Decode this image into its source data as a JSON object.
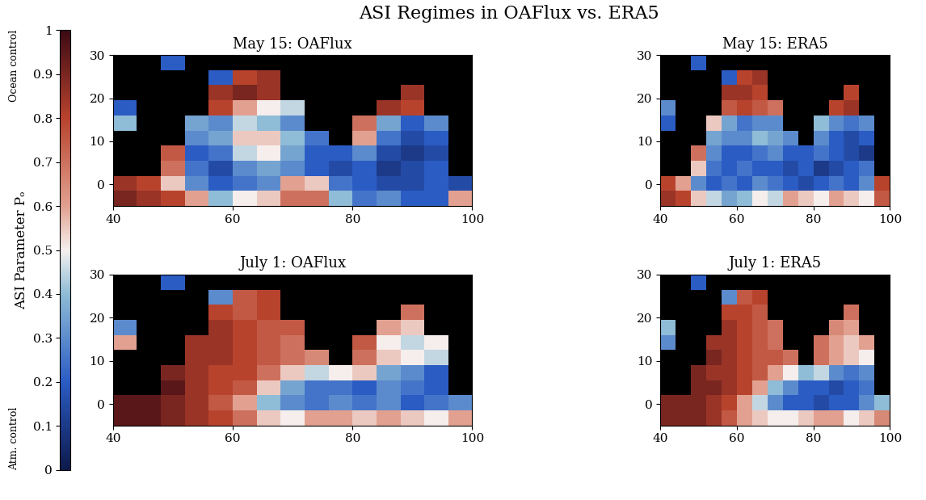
{
  "title": "ASI Regimes in OAFlux vs. ERA5",
  "colorbar": {
    "label": "ASI Parameter Pₒ",
    "range": [
      0,
      1
    ],
    "ticks": [
      0,
      0.1,
      0.2,
      0.3,
      0.4,
      0.5,
      0.6,
      0.7,
      0.8,
      0.9,
      1
    ],
    "top_label": "Ocean control",
    "bottom_label": "Atm. control"
  },
  "chart_data": [
    {
      "type": "heatmap",
      "title": "May 15: OAFlux",
      "x_edges": [
        40,
        44,
        48,
        52,
        56,
        60,
        64,
        68,
        72,
        76,
        80,
        84,
        88,
        92,
        96,
        100
      ],
      "y_edges": [
        -5,
        -1.5,
        2,
        5.5,
        9,
        12.5,
        16,
        19.5,
        23,
        26.5,
        30
      ],
      "xlim": [
        40,
        100
      ],
      "ylim": [
        -5,
        30
      ],
      "xticks": [
        40,
        60,
        80,
        100
      ],
      "yticks": [
        0,
        10,
        20,
        30
      ],
      "cells": [
        [
          0.9,
          0.85,
          0.8,
          0.6,
          0.4,
          0.5,
          0.55,
          0.7,
          0.7,
          0.4,
          0.25,
          0.3,
          0.2,
          0.2,
          0.6
        ],
        [
          0.85,
          0.8,
          0.55,
          0.3,
          0.2,
          0.25,
          0.3,
          0.6,
          0.55,
          0.25,
          0.2,
          0.15,
          0.15,
          0.2,
          0.15
        ],
        [
          null,
          null,
          0.7,
          0.25,
          0.15,
          0.3,
          0.35,
          0.3,
          0.2,
          0.15,
          0.2,
          0.1,
          0.15,
          0.2,
          null
        ],
        [
          null,
          null,
          0.75,
          0.2,
          0.25,
          0.45,
          0.5,
          0.35,
          0.2,
          0.2,
          0.3,
          0.15,
          0.1,
          0.15,
          null
        ],
        [
          null,
          null,
          null,
          0.3,
          0.35,
          0.55,
          0.55,
          0.4,
          0.25,
          null,
          0.6,
          0.25,
          0.15,
          0.2,
          null
        ],
        [
          0.4,
          null,
          null,
          0.35,
          0.3,
          0.45,
          0.4,
          0.3,
          null,
          null,
          0.7,
          0.35,
          0.2,
          0.3,
          null
        ],
        [
          0.2,
          null,
          null,
          null,
          0.8,
          0.6,
          0.5,
          0.45,
          null,
          null,
          null,
          0.85,
          0.8,
          null,
          null
        ],
        [
          null,
          null,
          null,
          null,
          0.85,
          0.9,
          0.85,
          null,
          null,
          null,
          null,
          null,
          0.85,
          null,
          null
        ],
        [
          null,
          null,
          null,
          null,
          0.2,
          0.8,
          0.85,
          null,
          null,
          null,
          null,
          null,
          null,
          null,
          null
        ],
        [
          null,
          null,
          0.2,
          null,
          null,
          null,
          null,
          null,
          null,
          null,
          null,
          null,
          null,
          null,
          null
        ]
      ]
    },
    {
      "type": "heatmap",
      "title": "May 15: ERA5",
      "x_edges": [
        40,
        44,
        48,
        52,
        56,
        60,
        64,
        68,
        72,
        76,
        80,
        84,
        88,
        92,
        96,
        100
      ],
      "y_edges": [
        -5,
        -1.5,
        2,
        5.5,
        9,
        12.5,
        16,
        19.5,
        23,
        26.5,
        30
      ],
      "xlim": [
        40,
        100
      ],
      "ylim": [
        -5,
        30
      ],
      "xticks": [
        40,
        60,
        80,
        100
      ],
      "yticks": [
        0,
        10,
        20,
        30
      ],
      "cells": [
        [
          0.85,
          0.8,
          0.55,
          0.45,
          0.35,
          0.4,
          0.5,
          0.45,
          0.6,
          0.55,
          0.5,
          0.6,
          0.55,
          0.5,
          0.75
        ],
        [
          0.8,
          0.6,
          0.3,
          0.2,
          0.25,
          0.2,
          0.3,
          0.25,
          0.2,
          0.15,
          0.2,
          0.25,
          0.2,
          0.3,
          0.8
        ],
        [
          null,
          null,
          0.55,
          0.25,
          0.2,
          0.25,
          0.2,
          0.2,
          0.15,
          0.2,
          0.1,
          0.15,
          0.2,
          0.25,
          null
        ],
        [
          null,
          null,
          0.7,
          0.3,
          0.2,
          0.2,
          0.25,
          0.3,
          0.2,
          0.2,
          0.25,
          0.2,
          0.15,
          0.1,
          null
        ],
        [
          null,
          null,
          null,
          0.35,
          0.3,
          0.3,
          0.4,
          0.35,
          0.3,
          null,
          0.3,
          0.2,
          0.15,
          0.2,
          null
        ],
        [
          0.2,
          null,
          null,
          0.55,
          0.35,
          0.25,
          0.3,
          0.3,
          null,
          null,
          0.4,
          0.3,
          0.25,
          0.3,
          null
        ],
        [
          0.3,
          null,
          null,
          null,
          0.75,
          0.8,
          0.75,
          0.7,
          null,
          null,
          null,
          0.8,
          0.85,
          null,
          null
        ],
        [
          null,
          null,
          null,
          null,
          0.85,
          0.85,
          0.8,
          null,
          null,
          null,
          null,
          null,
          0.8,
          null,
          null
        ],
        [
          null,
          null,
          null,
          null,
          0.2,
          0.8,
          0.85,
          null,
          null,
          null,
          null,
          null,
          null,
          null,
          null
        ],
        [
          null,
          null,
          0.2,
          null,
          null,
          null,
          null,
          null,
          null,
          null,
          null,
          null,
          null,
          null,
          null
        ]
      ]
    },
    {
      "type": "heatmap",
      "title": "July 1: OAFlux",
      "x_edges": [
        40,
        44,
        48,
        52,
        56,
        60,
        64,
        68,
        72,
        76,
        80,
        84,
        88,
        92,
        96,
        100
      ],
      "y_edges": [
        -5,
        -1.5,
        2,
        5.5,
        9,
        12.5,
        16,
        19.5,
        23,
        26.5,
        30
      ],
      "xlim": [
        40,
        100
      ],
      "ylim": [
        -5,
        30
      ],
      "xticks": [
        40,
        60,
        80,
        100
      ],
      "yticks": [
        0,
        10,
        20,
        30
      ],
      "cells": [
        [
          0.95,
          0.95,
          0.9,
          0.85,
          0.8,
          0.7,
          0.55,
          0.5,
          0.6,
          0.6,
          0.55,
          0.6,
          0.55,
          0.5,
          0.6
        ],
        [
          0.95,
          0.95,
          0.9,
          0.85,
          0.75,
          0.6,
          0.4,
          0.3,
          0.25,
          0.3,
          0.25,
          0.3,
          0.2,
          0.25,
          0.3
        ],
        [
          null,
          null,
          0.95,
          0.85,
          0.8,
          0.75,
          0.55,
          0.35,
          0.25,
          0.25,
          0.2,
          0.3,
          0.25,
          0.2,
          null
        ],
        [
          null,
          null,
          0.9,
          0.85,
          0.8,
          0.8,
          0.7,
          0.55,
          0.45,
          0.5,
          0.55,
          0.35,
          0.3,
          0.2,
          null
        ],
        [
          null,
          null,
          null,
          0.85,
          0.85,
          0.8,
          0.75,
          0.7,
          0.65,
          null,
          0.7,
          0.55,
          0.5,
          0.45,
          null
        ],
        [
          0.6,
          null,
          null,
          0.85,
          0.85,
          0.8,
          0.75,
          0.7,
          null,
          null,
          0.75,
          0.5,
          0.45,
          0.5,
          null
        ],
        [
          0.3,
          null,
          null,
          null,
          0.85,
          0.8,
          0.75,
          0.75,
          null,
          null,
          null,
          0.6,
          0.55,
          null,
          null
        ],
        [
          null,
          null,
          null,
          null,
          0.8,
          0.75,
          0.8,
          null,
          null,
          null,
          null,
          null,
          0.7,
          null,
          null
        ],
        [
          null,
          null,
          null,
          null,
          0.3,
          0.75,
          0.8,
          null,
          null,
          null,
          null,
          null,
          null,
          null,
          null
        ],
        [
          null,
          null,
          0.2,
          null,
          null,
          null,
          null,
          null,
          null,
          null,
          null,
          null,
          null,
          null,
          null
        ]
      ]
    },
    {
      "type": "heatmap",
      "title": "July 1: ERA5",
      "x_edges": [
        40,
        44,
        48,
        52,
        56,
        60,
        64,
        68,
        72,
        76,
        80,
        84,
        88,
        92,
        96,
        100
      ],
      "y_edges": [
        -5,
        -1.5,
        2,
        5.5,
        9,
        12.5,
        16,
        19.5,
        23,
        26.5,
        30
      ],
      "xlim": [
        40,
        100
      ],
      "ylim": [
        -5,
        30
      ],
      "xticks": [
        40,
        60,
        80,
        100
      ],
      "yticks": [
        0,
        10,
        20,
        30
      ],
      "cells": [
        [
          0.9,
          0.9,
          0.9,
          0.85,
          0.75,
          0.6,
          0.55,
          0.5,
          0.5,
          0.55,
          0.6,
          0.6,
          0.5,
          0.55,
          0.65
        ],
        [
          0.9,
          0.9,
          0.9,
          0.85,
          0.8,
          0.6,
          0.45,
          0.3,
          0.2,
          0.2,
          0.15,
          0.2,
          0.2,
          0.3,
          0.4
        ],
        [
          null,
          null,
          0.9,
          0.9,
          0.85,
          0.8,
          0.6,
          0.4,
          0.3,
          0.2,
          0.2,
          0.15,
          0.2,
          0.25,
          null
        ],
        [
          null,
          null,
          0.9,
          0.85,
          0.85,
          0.8,
          0.75,
          0.6,
          0.5,
          0.4,
          0.45,
          0.3,
          0.25,
          0.3,
          null
        ],
        [
          null,
          null,
          null,
          0.9,
          0.85,
          0.8,
          0.75,
          0.75,
          0.7,
          null,
          0.7,
          0.6,
          0.55,
          0.5,
          null
        ],
        [
          0.3,
          null,
          null,
          0.85,
          0.85,
          0.8,
          0.75,
          0.7,
          null,
          null,
          0.7,
          0.6,
          0.55,
          0.6,
          null
        ],
        [
          0.4,
          null,
          null,
          null,
          0.85,
          0.8,
          0.75,
          0.7,
          null,
          null,
          null,
          0.65,
          0.6,
          null,
          null
        ],
        [
          null,
          null,
          null,
          null,
          0.8,
          0.8,
          0.75,
          null,
          null,
          null,
          null,
          null,
          0.7,
          null,
          null
        ],
        [
          null,
          null,
          null,
          null,
          0.3,
          0.75,
          0.8,
          null,
          null,
          null,
          null,
          null,
          null,
          null,
          null
        ],
        [
          null,
          null,
          0.2,
          null,
          null,
          null,
          null,
          null,
          null,
          null,
          null,
          null,
          null,
          null,
          null
        ]
      ]
    }
  ]
}
